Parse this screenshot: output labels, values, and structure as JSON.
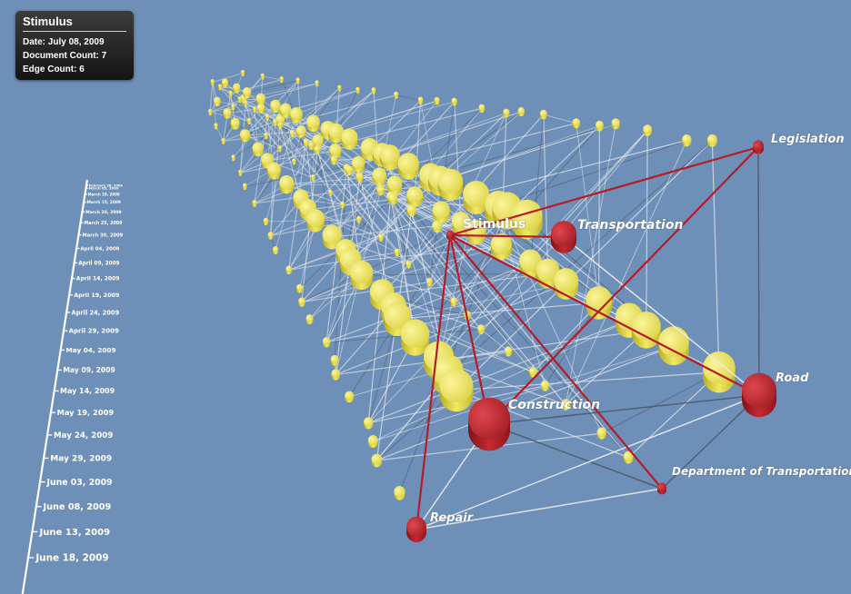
{
  "info_panel": {
    "title": "Stimulus",
    "date_label": "Date:",
    "date_value": "July 08, 2009",
    "document_count_label": "Document Count:",
    "document_count_value": "7",
    "edge_count_label": "Edge Count:",
    "edge_count_value": "6"
  },
  "timeline_dates": [
    "February 28, 2009",
    "March 05, 2009",
    "March 10, 2009",
    "March 15, 2009",
    "March 20, 2009",
    "March 25, 2009",
    "March 30, 2009",
    "April 04, 2009",
    "April 09, 2009",
    "April 14, 2009",
    "April 19, 2009",
    "April 24, 2009",
    "April 29, 2009",
    "May 04, 2009",
    "May 09, 2009",
    "May 14, 2009",
    "May 19, 2009",
    "May 24, 2009",
    "May 29, 2009",
    "June 03, 2009",
    "June 08, 2009",
    "June 13, 2009",
    "June 18, 2009"
  ],
  "network": {
    "terms": [
      {
        "id": "stimulus",
        "label": "Stimulus",
        "weight": 1
      },
      {
        "id": "transportation",
        "label": "Transportation",
        "weight": 3
      },
      {
        "id": "legislation",
        "label": "Legislation",
        "weight": 1
      },
      {
        "id": "road",
        "label": "Road",
        "weight": 4
      },
      {
        "id": "construction",
        "label": "Construction",
        "weight": 5
      },
      {
        "id": "department-of-transportation",
        "label": "Department of Transportation",
        "weight": 1
      },
      {
        "id": "repair",
        "label": "Repair",
        "weight": 2
      }
    ],
    "highlighted_edges": [
      [
        "stimulus",
        "transportation"
      ],
      [
        "stimulus",
        "legislation"
      ],
      [
        "stimulus",
        "road"
      ],
      [
        "stimulus",
        "construction"
      ],
      [
        "stimulus",
        "department-of-transportation"
      ],
      [
        "stimulus",
        "repair"
      ],
      [
        "construction",
        "legislation"
      ]
    ],
    "other_edges": [
      [
        "transportation",
        "road"
      ],
      [
        "construction",
        "road"
      ],
      [
        "construction",
        "repair"
      ],
      [
        "construction",
        "department-of-transportation"
      ],
      [
        "road",
        "repair"
      ],
      [
        "road",
        "department-of-transportation"
      ],
      [
        "repair",
        "department-of-transportation"
      ],
      [
        "legislation",
        "road"
      ]
    ]
  },
  "colors": {
    "background": "#6e8fb7",
    "active_node": "#b3202a",
    "active_edge": "#b51c28",
    "history_node": "#efe64d",
    "history_edge": "#e8ebf0"
  }
}
